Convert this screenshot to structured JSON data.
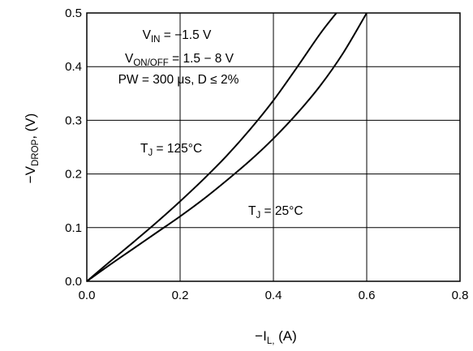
{
  "chart_data": {
    "type": "line",
    "xlabel": {
      "prefix": "−I",
      "sub": "L,",
      "suffix": " (A)"
    },
    "ylabel": {
      "prefix": "−V",
      "sub": "DROP",
      "suffix": ", (V)"
    },
    "xlim": [
      0.0,
      0.8
    ],
    "ylim": [
      0.0,
      0.5
    ],
    "x_ticks": [
      "0.0",
      "0.2",
      "0.4",
      "0.6",
      "0.8"
    ],
    "y_ticks": [
      "0.0",
      "0.1",
      "0.2",
      "0.3",
      "0.4",
      "0.5"
    ],
    "grid": true,
    "conditions": [
      {
        "prefix": "V",
        "sub": "IN",
        "suffix": " = −1.5 V"
      },
      {
        "prefix": "V",
        "sub": "ON/OFF",
        "suffix": " = 1.5 − 8 V"
      },
      {
        "prefix": "PW = 300 μs, D ≤ 2%",
        "sub": "",
        "suffix": ""
      }
    ],
    "series": [
      {
        "name": {
          "prefix": "T",
          "sub": "J",
          "suffix": " = 125°C"
        },
        "color": "#000000",
        "points": [
          [
            0.0,
            0.0
          ],
          [
            0.05,
            0.037
          ],
          [
            0.1,
            0.073
          ],
          [
            0.15,
            0.11
          ],
          [
            0.2,
            0.149
          ],
          [
            0.25,
            0.19
          ],
          [
            0.3,
            0.234
          ],
          [
            0.35,
            0.283
          ],
          [
            0.4,
            0.337
          ],
          [
            0.45,
            0.398
          ],
          [
            0.5,
            0.461
          ],
          [
            0.535,
            0.5
          ]
        ]
      },
      {
        "name": {
          "prefix": "T",
          "sub": "J",
          "suffix": " = 25°C"
        },
        "color": "#000000",
        "points": [
          [
            0.0,
            0.0
          ],
          [
            0.05,
            0.031
          ],
          [
            0.1,
            0.061
          ],
          [
            0.15,
            0.091
          ],
          [
            0.2,
            0.121
          ],
          [
            0.25,
            0.153
          ],
          [
            0.3,
            0.188
          ],
          [
            0.35,
            0.225
          ],
          [
            0.4,
            0.266
          ],
          [
            0.45,
            0.312
          ],
          [
            0.5,
            0.364
          ],
          [
            0.55,
            0.426
          ],
          [
            0.6,
            0.5
          ]
        ]
      }
    ]
  }
}
